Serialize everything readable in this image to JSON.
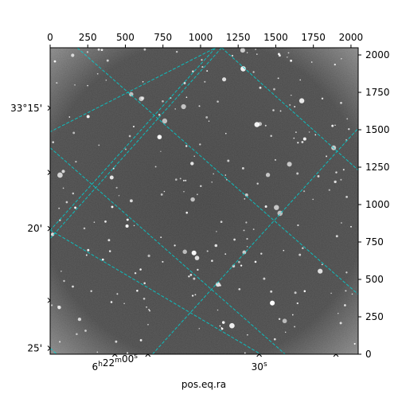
{
  "chart_data": {
    "type": "heatmap",
    "title": "",
    "xlabel": "pos.eq.ra",
    "ylabel": "",
    "top_axis": {
      "ticks": [
        0,
        250,
        500,
        750,
        1000,
        1250,
        1500,
        1750,
        2000
      ],
      "labels": [
        "0",
        "250",
        "500",
        "750",
        "1000",
        "1250",
        "1500",
        "1750",
        "2000"
      ],
      "range": [
        0,
        2048
      ]
    },
    "right_axis": {
      "ticks": [
        0,
        250,
        500,
        750,
        1000,
        1250,
        1500,
        1750,
        2000
      ],
      "labels": [
        "0",
        "250",
        "500",
        "750",
        "1000",
        "1250",
        "1500",
        "1750",
        "2000"
      ],
      "range": [
        0,
        2048
      ]
    },
    "ra_ticks": [
      {
        "label_main": "6",
        "sup1": "h",
        "mid": "22",
        "sup2": "m",
        "end": "00",
        "sup3": "s",
        "pixel": 430
      },
      {
        "label_main": "",
        "sup1": "",
        "mid": "",
        "sup2": "",
        "end": "30",
        "sup3": "s",
        "pixel": 1390
      }
    ],
    "dec_ticks": [
      {
        "label": "33°15'",
        "pixel": 1645
      },
      {
        "label": "20'",
        "pixel": 840
      },
      {
        "label": "25'",
        "pixel": 40
      }
    ],
    "grid": true,
    "grid_color": "#00d0d0",
    "image_colormap": "gray",
    "grid_lines": {
      "ra_lines": [
        {
          "x0": 180,
          "y0": 2048,
          "x1": 2048,
          "y1": 400
        },
        {
          "x0": 0,
          "y0": 1380,
          "x1": 1880,
          "y1": -280
        },
        {
          "x0": -600,
          "y0": 1180,
          "x1": 1100,
          "y1": 2048
        },
        {
          "x0": 680,
          "y0": 0,
          "x1": 2048,
          "y1": 1510
        }
      ],
      "dec_lines": [
        {
          "x0": 1140,
          "y0": 2048,
          "x1": -280,
          "y1": 460
        },
        {
          "x0": 1100,
          "y0": 2048,
          "x1": -350,
          "y1": 440
        },
        {
          "x0": 1140,
          "y0": 2048,
          "x1": 2048,
          "y1": 1230
        },
        {
          "x0": 0,
          "y0": 830,
          "x1": 1400,
          "y1": 0
        },
        {
          "x0": 0,
          "y0": 40,
          "x1": 380,
          "y1": -300
        }
      ]
    }
  }
}
